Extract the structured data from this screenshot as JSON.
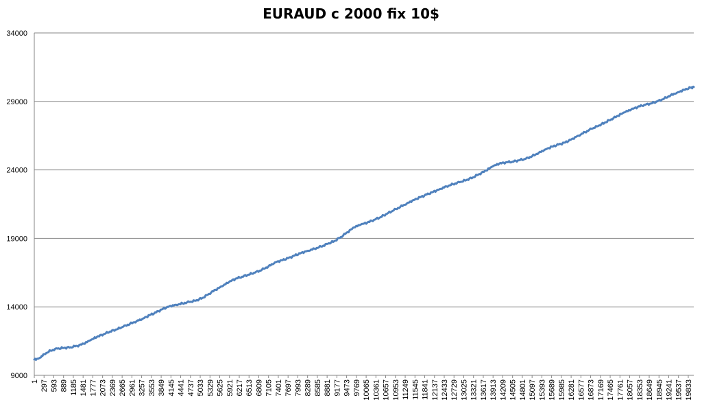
{
  "colors": {
    "line": "#4f81bd",
    "grid": "#868686",
    "axis": "#868686",
    "background": "#ffffff"
  },
  "chart_data": {
    "type": "line",
    "title": "EURAUD c 2000 fix 10$",
    "xlabel": "",
    "ylabel": "",
    "ylim": [
      9000,
      34000
    ],
    "yticks": [
      9000,
      14000,
      19000,
      24000,
      29000,
      34000
    ],
    "xlim": [
      1,
      20000
    ],
    "xticks": [
      1,
      297,
      593,
      889,
      1185,
      1481,
      1777,
      2073,
      2369,
      2665,
      2961,
      3257,
      3553,
      3849,
      4145,
      4441,
      4737,
      5033,
      5329,
      5625,
      5921,
      6217,
      6513,
      6809,
      7105,
      7401,
      7697,
      7993,
      8289,
      8585,
      8881,
      9177,
      9473,
      9769,
      10065,
      10361,
      10657,
      10953,
      11249,
      11545,
      11841,
      12137,
      12433,
      12729,
      13025,
      13321,
      13617,
      13913,
      14209,
      14505,
      14801,
      15097,
      15393,
      15689,
      15985,
      16281,
      16577,
      16873,
      17169,
      17465,
      17761,
      18057,
      18353,
      18649,
      18945,
      19241,
      19537,
      19833
    ],
    "grid": true,
    "legend": "none",
    "series": [
      {
        "x": [
          1,
          150,
          300,
          500,
          700,
          900,
          1100,
          1300,
          1500,
          1700,
          1900,
          2100,
          2300,
          2500,
          2700,
          2900,
          3100,
          3300,
          3500,
          3700,
          3900,
          4100,
          4300,
          4500,
          4700,
          4900,
          5100,
          5300,
          5500,
          5700,
          5900,
          6100,
          6300,
          6500,
          6700,
          6900,
          7100,
          7300,
          7500,
          7700,
          7900,
          8100,
          8300,
          8500,
          8700,
          8900,
          9100,
          9300,
          9500,
          9700,
          9900,
          10100,
          10300,
          10500,
          10700,
          10900,
          11100,
          11300,
          11500,
          11700,
          11900,
          12100,
          12300,
          12500,
          12700,
          12900,
          13100,
          13300,
          13500,
          13700,
          13900,
          14100,
          14300,
          14500,
          14700,
          14900,
          15100,
          15300,
          15500,
          15700,
          15900,
          16100,
          16300,
          16500,
          16700,
          16900,
          17100,
          17300,
          17500,
          17700,
          17900,
          18100,
          18300,
          18500,
          18700,
          18900,
          19100,
          19300,
          19500,
          19700,
          19900,
          20000
        ],
        "values": [
          10150,
          10250,
          10550,
          10800,
          10950,
          11000,
          11050,
          11150,
          11300,
          11550,
          11800,
          12000,
          12200,
          12350,
          12550,
          12750,
          12950,
          13150,
          13400,
          13600,
          13850,
          14050,
          14150,
          14250,
          14350,
          14450,
          14650,
          14950,
          15250,
          15500,
          15800,
          16050,
          16200,
          16350,
          16500,
          16700,
          16950,
          17250,
          17400,
          17550,
          17750,
          17950,
          18100,
          18250,
          18400,
          18600,
          18800,
          19100,
          19450,
          19800,
          20000,
          20150,
          20350,
          20550,
          20800,
          21050,
          21300,
          21550,
          21800,
          22000,
          22200,
          22400,
          22600,
          22800,
          22950,
          23100,
          23250,
          23450,
          23700,
          23950,
          24250,
          24450,
          24550,
          24600,
          24700,
          24800,
          25000,
          25250,
          25500,
          25700,
          25850,
          26000,
          26250,
          26500,
          26750,
          27000,
          27200,
          27450,
          27700,
          27950,
          28200,
          28400,
          28600,
          28750,
          28850,
          29000,
          29200,
          29450,
          29650,
          29850,
          30000,
          30050
        ]
      }
    ]
  }
}
